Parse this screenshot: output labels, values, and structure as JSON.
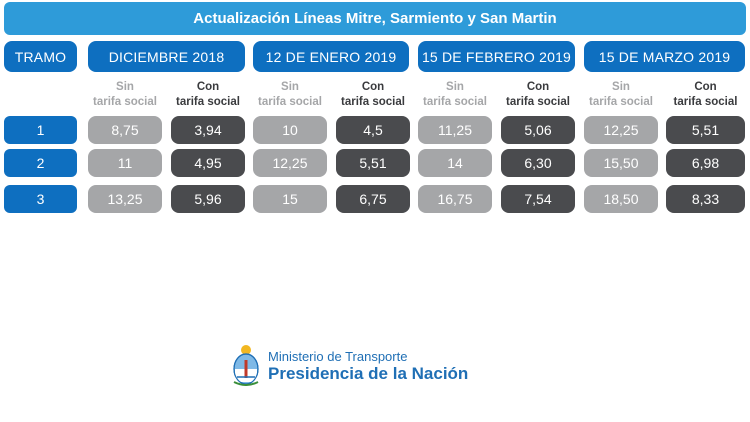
{
  "title": "Actualización Líneas Mitre, Sarmiento y San Martin",
  "tramo_header": "TRAMO",
  "periods": [
    {
      "label": "DICIEMBRE 2018"
    },
    {
      "label": "12 DE ENERO 2019"
    },
    {
      "label": "15 DE FEBRERO 2019"
    },
    {
      "label": "15 DE MARZO 2019"
    }
  ],
  "sub_labels": {
    "sin_line1": "Sin",
    "sin_line2": "tarifa social",
    "con_line1": "Con",
    "con_line2": "tarifa social"
  },
  "rows": [
    {
      "tramo": "1",
      "values": [
        "8,75",
        "3,94",
        "10",
        "4,5",
        "11,25",
        "5,06",
        "12,25",
        "5,51"
      ]
    },
    {
      "tramo": "2",
      "values": [
        "11",
        "4,95",
        "12,25",
        "5,51",
        "14",
        "6,30",
        "15,50",
        "6,98"
      ]
    },
    {
      "tramo": "3",
      "values": [
        "13,25",
        "5,96",
        "15",
        "6,75",
        "16,75",
        "7,54",
        "18,50",
        "8,33"
      ]
    }
  ],
  "footer": {
    "line1": "Ministerio de Transporte",
    "line2": "Presidencia de la Nación"
  },
  "colors": {
    "title_bg": "#2e9bd9",
    "header_bg": "#0e6fc0",
    "sin_bg": "#a5a6a8",
    "con_bg": "#4a4b4e"
  }
}
